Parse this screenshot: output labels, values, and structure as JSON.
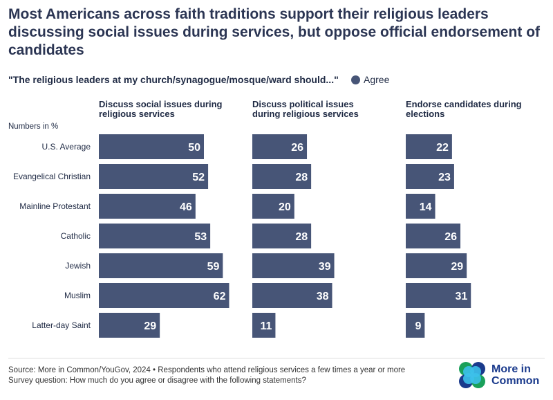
{
  "chart_data": {
    "type": "bar",
    "title": "Most Americans across faith traditions support their religious leaders discussing social issues during services, but oppose official endorsement of candidates",
    "subtitle": "\"The religious leaders at my church/synagogue/mosque/ward should...\"",
    "legend": [
      "Agree"
    ],
    "units_note": "Numbers in %",
    "categories": [
      "U.S. Average",
      "Evangelical Christian",
      "Mainline Protestant",
      "Catholic",
      "Jewish",
      "Muslim",
      "Latter-day Saint"
    ],
    "series": [
      {
        "name": "Discuss social issues during religious services",
        "values": [
          50,
          52,
          46,
          53,
          59,
          62,
          29
        ]
      },
      {
        "name": "Discuss political issues during religious services",
        "values": [
          26,
          28,
          20,
          28,
          39,
          38,
          11
        ]
      },
      {
        "name": "Endorse candidates during elections",
        "values": [
          22,
          23,
          14,
          26,
          29,
          31,
          9
        ]
      }
    ],
    "colors": {
      "bar": "#475577"
    }
  },
  "footer": {
    "source": "Source: More in Common/YouGov, 2024 • Respondents who attend religious services a few times a year or more",
    "question": "Survey question: How much do you agree or disagree with the following statements?"
  },
  "logo": {
    "line1": "More in",
    "line2": "Common"
  }
}
